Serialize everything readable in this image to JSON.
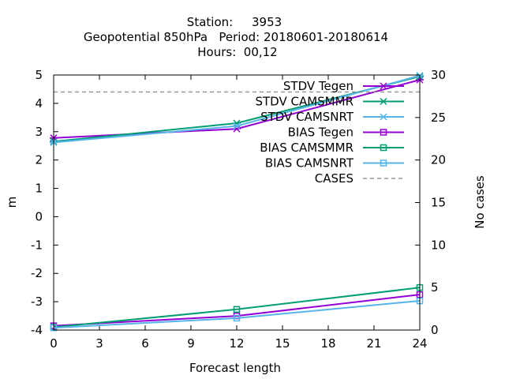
{
  "chart_data": {
    "type": "line",
    "title_lines": [
      "Station:     3953",
      "Geopotential 850hPa   Period: 20180601-20180614",
      "Hours:  00,12"
    ],
    "xlabel": "Forecast length",
    "ylabel": "m",
    "y2label": "No cases",
    "xlim": [
      0,
      24
    ],
    "ylim": [
      -4,
      5
    ],
    "y2lim": [
      0,
      30
    ],
    "x_ticks": [
      0,
      3,
      6,
      9,
      12,
      15,
      18,
      21,
      24
    ],
    "y_ticks": [
      -4,
      -3,
      -2,
      -1,
      0,
      1,
      2,
      3,
      4,
      5
    ],
    "y2_ticks": [
      0,
      5,
      10,
      15,
      20,
      25,
      30
    ],
    "legend_position": "top-right",
    "grid": false,
    "series": [
      {
        "name": "STDV Tegen",
        "axis": "y",
        "color": "#9400d3",
        "marker": "x",
        "x": [
          0,
          12,
          24
        ],
        "values": [
          2.78,
          3.1,
          4.83
        ]
      },
      {
        "name": "STDV CAMSMMR",
        "axis": "y",
        "color": "#009e73",
        "marker": "x",
        "x": [
          0,
          12,
          24
        ],
        "values": [
          2.65,
          3.3,
          4.95
        ]
      },
      {
        "name": "STDV CAMSNRT",
        "axis": "y",
        "color": "#56b4e9",
        "marker": "x",
        "x": [
          0,
          12,
          24
        ],
        "values": [
          2.62,
          3.2,
          4.98
        ]
      },
      {
        "name": "BIAS Tegen",
        "axis": "y",
        "color": "#9400d3",
        "marker": "square",
        "x": [
          0,
          12,
          24
        ],
        "values": [
          -3.85,
          -3.5,
          -2.75
        ]
      },
      {
        "name": "BIAS CAMSMMR",
        "axis": "y",
        "color": "#009e73",
        "marker": "square",
        "x": [
          0,
          12,
          24
        ],
        "values": [
          -3.9,
          -3.27,
          -2.5
        ]
      },
      {
        "name": "BIAS CAMSNRT",
        "axis": "y",
        "color": "#56b4e9",
        "marker": "square",
        "x": [
          0,
          12,
          24
        ],
        "values": [
          -3.92,
          -3.58,
          -2.97
        ]
      },
      {
        "name": "CASES",
        "axis": "y2",
        "color": "#888888",
        "marker": "none",
        "dashed": true,
        "x": [
          0,
          24
        ],
        "values": [
          28,
          28
        ]
      }
    ]
  }
}
